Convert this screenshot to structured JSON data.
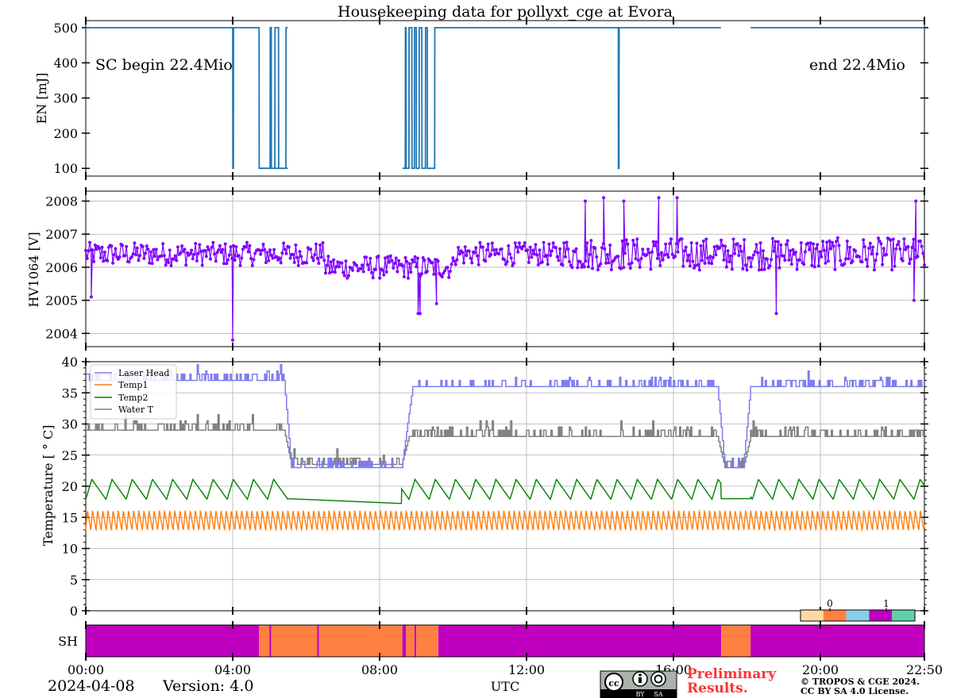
{
  "title": "Housekeeping data for pollyxt_cge at Evora",
  "date": "2024-04-08",
  "version": "Version: 4.0",
  "xlabel": "UTC",
  "x_ticks": [
    "00:00",
    "04:00",
    "08:00",
    "12:00",
    "16:00",
    "20:00",
    "22:50"
  ],
  "x_tick_hours": [
    0,
    4,
    8,
    12,
    16,
    20,
    22.8333
  ],
  "preliminary": [
    "Preliminary",
    "Results."
  ],
  "copyright": [
    "© TROPOS & CGE 2024.",
    "CC BY SA 4.0 License."
  ],
  "cc_badge": {
    "by": "BY",
    "sa": "SA"
  },
  "colors": {
    "energy": "#1f77b4",
    "hv": "#7f00ff",
    "laser_head": "#7b7bf0",
    "temp1": "#ff7f0e",
    "temp2": "#008000",
    "water_t": "#808080",
    "preliminary": "#ff3333",
    "sh_magenta": "#bf00bf",
    "sh_orange": "#ff8040"
  },
  "chart_data": [
    {
      "type": "line",
      "name": "energy",
      "ylabel": "EN [mJ]",
      "ylim": [
        78,
        520
      ],
      "yticks": [
        100,
        200,
        300,
        400,
        500
      ],
      "annotations": {
        "left": "SC begin 22.4Mio",
        "right": "end 22.4Mio"
      },
      "levels": {
        "high": 500,
        "low": 100
      },
      "low_segments_hours": [
        [
          4.0,
          4.02
        ],
        [
          4.72,
          5.02
        ],
        [
          5.05,
          5.15
        ],
        [
          5.25,
          5.45
        ],
        [
          8.62,
          8.7
        ],
        [
          8.72,
          8.8
        ],
        [
          8.88,
          8.95
        ],
        [
          9.0,
          9.08
        ],
        [
          9.15,
          9.25
        ],
        [
          9.3,
          9.5
        ],
        [
          14.5,
          14.52
        ]
      ],
      "gaps_hours": [
        [
          5.5,
          8.62
        ],
        [
          17.3,
          18.1
        ]
      ]
    },
    {
      "type": "scatter",
      "name": "hv1064",
      "ylabel": "HV1064 [V]",
      "ylim": [
        2003.6,
        2008.3
      ],
      "yticks": [
        2004,
        2005,
        2006,
        2007,
        2008
      ],
      "baseline": 2006.4,
      "noise": 0.35,
      "extremes": [
        {
          "t": 0.15,
          "v": 2005.1
        },
        {
          "t": 4.0,
          "v": 2003.8
        },
        {
          "t": 9.05,
          "v": 2004.6
        },
        {
          "t": 9.1,
          "v": 2004.6
        },
        {
          "t": 9.55,
          "v": 2004.9
        },
        {
          "t": 13.6,
          "v": 2008.0
        },
        {
          "t": 14.1,
          "v": 2008.1
        },
        {
          "t": 14.65,
          "v": 2008.0
        },
        {
          "t": 15.6,
          "v": 2008.1
        },
        {
          "t": 16.1,
          "v": 2008.1
        },
        {
          "t": 18.8,
          "v": 2004.6
        },
        {
          "t": 22.55,
          "v": 2005.0
        },
        {
          "t": 22.6,
          "v": 2008.0
        }
      ]
    },
    {
      "type": "line",
      "name": "temperature",
      "ylabel": "Temperature [$^\\circ C$]",
      "ylabel_display": "Temperature [ ° C]",
      "ylim": [
        0,
        40
      ],
      "yticks": [
        0,
        5,
        10,
        15,
        20,
        25,
        30,
        35,
        40
      ],
      "legend_position": "upper-left",
      "series": [
        {
          "name": "Laser Head",
          "key": "laser_head",
          "segments": [
            [
              0,
              37
            ],
            [
              5.4,
              37
            ],
            [
              5.6,
              23
            ],
            [
              8.6,
              23
            ],
            [
              8.9,
              36
            ],
            [
              17.2,
              36
            ],
            [
              17.4,
              23
            ],
            [
              17.9,
              23
            ],
            [
              18.1,
              36
            ],
            [
              22.83,
              36
            ]
          ]
        },
        {
          "name": "Temp1",
          "key": "temp1",
          "center": 14.5,
          "amplitude": 1.6
        },
        {
          "name": "Temp2",
          "key": "temp2",
          "center": 19.5,
          "amplitude": 1.6
        },
        {
          "name": "Water T",
          "key": "water_t",
          "segments": [
            [
              0,
              29
            ],
            [
              5.4,
              29
            ],
            [
              5.6,
              23.5
            ],
            [
              8.6,
              23.5
            ],
            [
              8.8,
              28
            ],
            [
              17.2,
              28
            ],
            [
              17.4,
              23
            ],
            [
              17.9,
              23
            ],
            [
              18.1,
              28
            ],
            [
              22.83,
              28
            ]
          ]
        }
      ]
    },
    {
      "type": "heatmap",
      "name": "sh_status",
      "ylabel": "SH",
      "colorbar_ticks": [
        "0",
        "1"
      ],
      "colorbar_colors": [
        "#fcd9a3",
        "#ff8040",
        "#87ceeb",
        "#bf00bf",
        "#5fd0a8"
      ],
      "segments_hours": [
        {
          "start": 0,
          "end": 4.72,
          "state": "magenta"
        },
        {
          "start": 4.72,
          "end": 5.0,
          "state": "orange"
        },
        {
          "start": 5.0,
          "end": 5.05,
          "state": "magenta"
        },
        {
          "start": 5.05,
          "end": 6.3,
          "state": "orange"
        },
        {
          "start": 6.3,
          "end": 6.35,
          "state": "magenta"
        },
        {
          "start": 6.35,
          "end": 8.62,
          "state": "orange"
        },
        {
          "start": 8.62,
          "end": 8.72,
          "state": "magenta"
        },
        {
          "start": 8.72,
          "end": 8.95,
          "state": "orange"
        },
        {
          "start": 8.95,
          "end": 9.0,
          "state": "magenta"
        },
        {
          "start": 9.0,
          "end": 9.6,
          "state": "orange"
        },
        {
          "start": 9.6,
          "end": 17.3,
          "state": "magenta"
        },
        {
          "start": 17.3,
          "end": 18.1,
          "state": "orange"
        },
        {
          "start": 18.1,
          "end": 22.83,
          "state": "magenta"
        }
      ]
    }
  ]
}
